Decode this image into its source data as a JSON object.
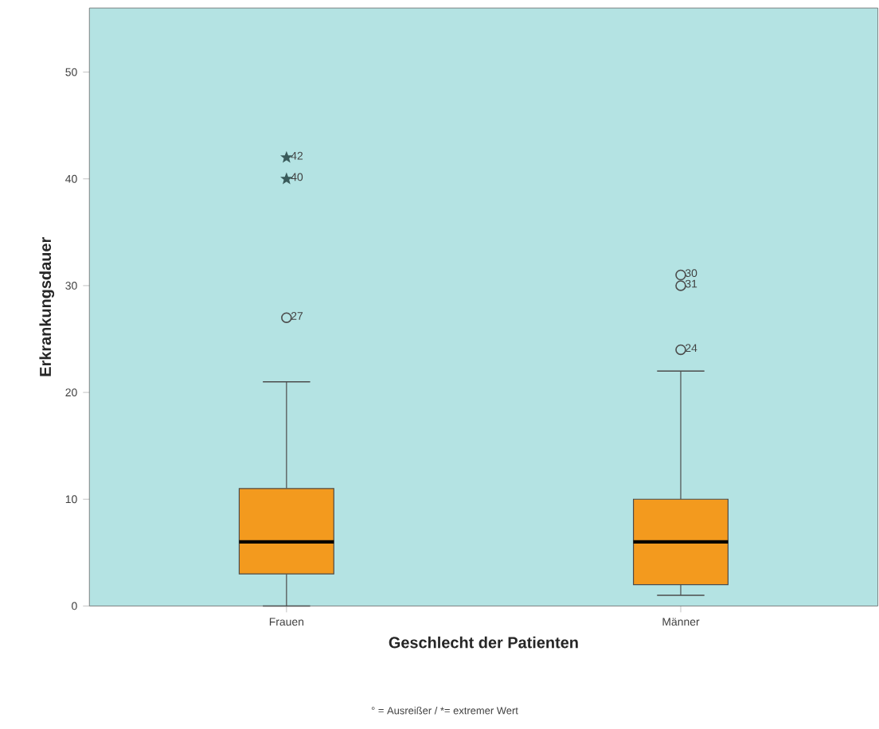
{
  "chart_data": {
    "type": "box",
    "xlabel": "Geschlecht der Patienten",
    "ylabel": "Erkrankungsdauer",
    "categories": [
      "Frauen",
      "Männer"
    ],
    "boxes": [
      {
        "low": 0,
        "q1": 3,
        "median": 6,
        "q3": 11,
        "high": 21
      },
      {
        "low": 1,
        "q1": 2,
        "median": 6,
        "q3": 10,
        "high": 22
      }
    ],
    "color": "#f39a1e",
    "series": [
      {
        "type": "scatter",
        "x": [
          "Frauen",
          "Frauen"
        ],
        "values": [
          42,
          40
        ],
        "marker": "star",
        "color": "#3a5a5a"
      },
      {
        "type": "scatter",
        "x": [
          "Frauen",
          "Männer",
          "Männer",
          "Männer"
        ],
        "values": [
          27,
          24,
          30,
          31
        ],
        "marker": "circle",
        "color": "#4c4c4c"
      }
    ],
    "ylim": [
      0,
      56
    ],
    "yticks": [
      0,
      10,
      20,
      30,
      40,
      50
    ],
    "annotations": [
      {
        "text": "42",
        "x": "Frauen",
        "y": 42
      },
      {
        "text": "40",
        "x": "Frauen",
        "y": 40
      },
      {
        "text": "27",
        "x": "Frauen",
        "y": 27
      },
      {
        "text": "30",
        "x": "Männer",
        "y": 31
      },
      {
        "text": "31",
        "x": "Männer",
        "y": 30
      },
      {
        "text": "24",
        "x": "Männer",
        "y": 24
      },
      "° = Ausreißer / *= extremer Wert"
    ]
  }
}
